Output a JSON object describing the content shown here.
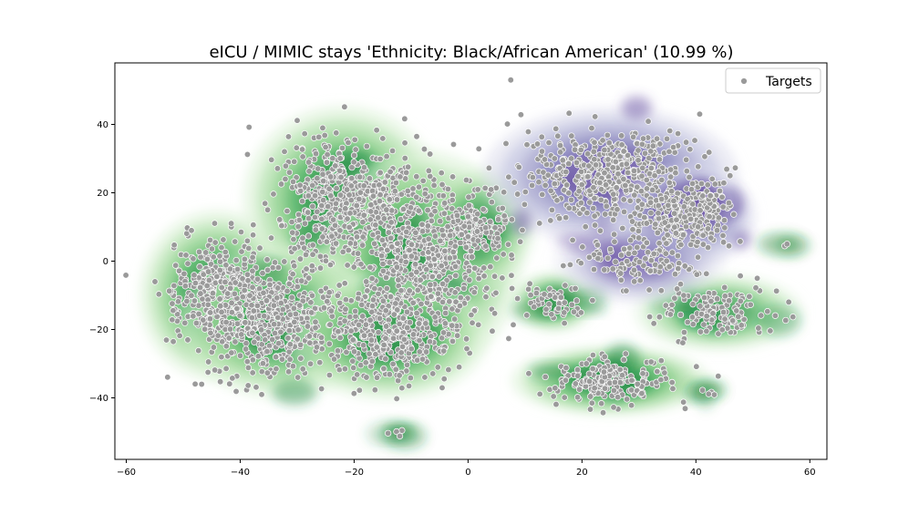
{
  "chart_data": {
    "type": "scatter",
    "title": "eICU / MIMIC stays 'Ethnicity: Black/African American' (10.99 %)",
    "xlabel": "",
    "ylabel": "",
    "xlim": [
      -62,
      63
    ],
    "ylim": [
      -58,
      58
    ],
    "xticks": [
      -60,
      -40,
      -20,
      0,
      20,
      40,
      60
    ],
    "yticks": [
      -40,
      -20,
      0,
      20,
      40
    ],
    "grid": false,
    "legend": {
      "placement": "top-right",
      "entries": [
        "Targets"
      ]
    },
    "colors": {
      "points_fill": "#9a9a9a",
      "points_edge": "#ffffff",
      "density_a": "#1b7837",
      "density_b": "#54278f"
    },
    "density_a_clusters": [
      {
        "cx": -44,
        "cy": -10,
        "rx": 11,
        "ry": 20,
        "weight": 1.0
      },
      {
        "cx": -22,
        "cy": 18,
        "rx": 14,
        "ry": 22,
        "weight": 1.0
      },
      {
        "cx": -8,
        "cy": 0,
        "rx": 14,
        "ry": 26,
        "weight": 1.0
      },
      {
        "cx": -33,
        "cy": -18,
        "rx": 14,
        "ry": 18,
        "weight": 0.9
      },
      {
        "cx": -14,
        "cy": -22,
        "rx": 14,
        "ry": 15,
        "weight": 0.9
      },
      {
        "cx": 2,
        "cy": 10,
        "rx": 8,
        "ry": 14,
        "weight": 0.7
      },
      {
        "cx": 25,
        "cy": -35,
        "rx": 14,
        "ry": 8,
        "weight": 1.0
      },
      {
        "cx": 15,
        "cy": -12,
        "rx": 6,
        "ry": 7,
        "weight": 0.8
      },
      {
        "cx": 44,
        "cy": -15,
        "rx": 12,
        "ry": 9,
        "weight": 0.7
      },
      {
        "cx": -12,
        "cy": -50,
        "rx": 3,
        "ry": 2,
        "weight": 0.4
      },
      {
        "cx": 42,
        "cy": -38,
        "rx": 2.5,
        "ry": 2,
        "weight": 0.4
      },
      {
        "cx": 56,
        "cy": 5,
        "rx": 1.5,
        "ry": 1.5,
        "weight": 0.3
      }
    ],
    "density_b_clusters": [
      {
        "cx": 25,
        "cy": 25,
        "rx": 18,
        "ry": 16,
        "weight": 1.0
      },
      {
        "cx": 38,
        "cy": 13,
        "rx": 10,
        "ry": 12,
        "weight": 1.0
      },
      {
        "cx": 30,
        "cy": 0,
        "rx": 12,
        "ry": 10,
        "weight": 0.6
      },
      {
        "cx": 42,
        "cy": 17,
        "rx": 4,
        "ry": 4,
        "weight": 0.9
      }
    ],
    "outliers": [
      [
        7.5,
        53
      ],
      [
        46,
        25
      ],
      [
        56,
        5
      ]
    ]
  }
}
